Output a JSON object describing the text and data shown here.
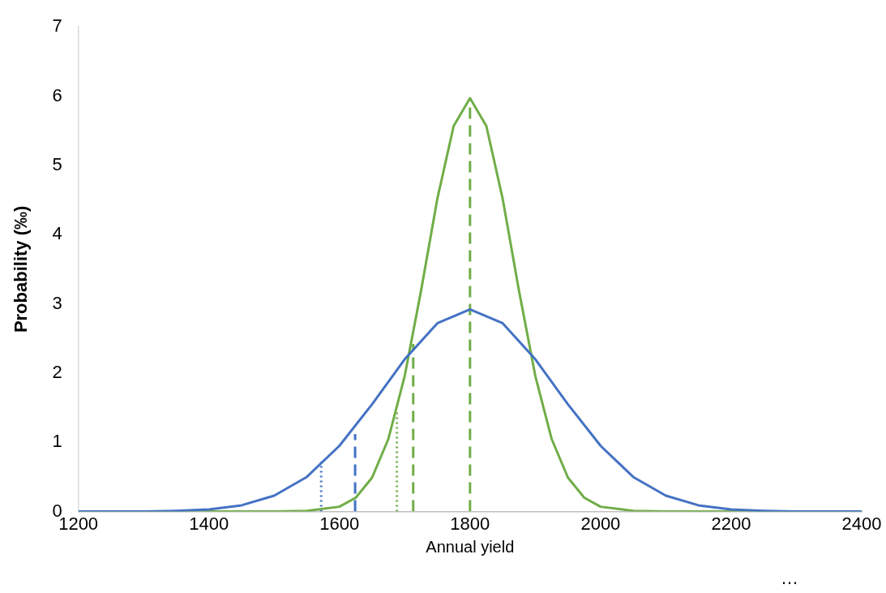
{
  "chart_data": {
    "type": "line",
    "xlabel": "Annual yield",
    "ylabel": "Probability (‰)",
    "xlim": [
      1200,
      2400
    ],
    "xticks": [
      1200,
      1400,
      1600,
      1800,
      2000,
      2200,
      2400
    ],
    "ylim": [
      0,
      7
    ],
    "yticks": [
      0,
      1,
      2,
      3,
      4,
      5,
      6,
      7
    ],
    "grid": false,
    "legend": false,
    "marker": "none",
    "line_style": "solid",
    "series": [
      {
        "color": "#4472c4",
        "x": [
          1200,
          1300,
          1350,
          1400,
          1450,
          1500,
          1550,
          1600,
          1650,
          1700,
          1750,
          1800,
          1850,
          1900,
          1950,
          2000,
          2050,
          2100,
          2150,
          2200,
          2250,
          2300,
          2400
        ],
        "values": [
          0,
          0,
          0.01,
          0.03,
          0.09,
          0.23,
          0.5,
          0.95,
          1.55,
          2.2,
          2.72,
          2.92,
          2.72,
          2.2,
          1.55,
          0.95,
          0.5,
          0.23,
          0.09,
          0.03,
          0.01,
          0,
          0
        ]
      },
      {
        "color": "#70ad47",
        "x": [
          1200,
          1500,
          1550,
          1600,
          1625,
          1650,
          1675,
          1700,
          1725,
          1750,
          1775,
          1800,
          1825,
          1850,
          1875,
          1900,
          1925,
          1950,
          1975,
          2000,
          2050,
          2100,
          2400
        ],
        "values": [
          0,
          0,
          0.01,
          0.07,
          0.2,
          0.49,
          1.05,
          1.96,
          3.19,
          4.52,
          5.57,
          5.97,
          5.57,
          4.52,
          3.19,
          1.96,
          1.05,
          0.49,
          0.2,
          0.07,
          0.01,
          0,
          0
        ]
      },
      {
        "color": "#4472c4",
        "line_style": "dotted",
        "x": [
          1572,
          1572
        ],
        "values": [
          0,
          0.72
        ]
      },
      {
        "color": "#4472c4",
        "line_style": "dashed",
        "x": [
          1624,
          1624
        ],
        "values": [
          0,
          1.12
        ]
      },
      {
        "color": "#70ad47",
        "line_style": "dotted",
        "x": [
          1688,
          1688
        ],
        "values": [
          0,
          1.45
        ]
      },
      {
        "color": "#70ad47",
        "line_style": "dashed",
        "x": [
          1713,
          1713
        ],
        "values": [
          0,
          2.42
        ]
      },
      {
        "color": "#70ad47",
        "line_style": "dashed",
        "x": [
          1800,
          1800
        ],
        "values": [
          0,
          5.97
        ]
      }
    ],
    "annotations": [
      "…"
    ]
  }
}
